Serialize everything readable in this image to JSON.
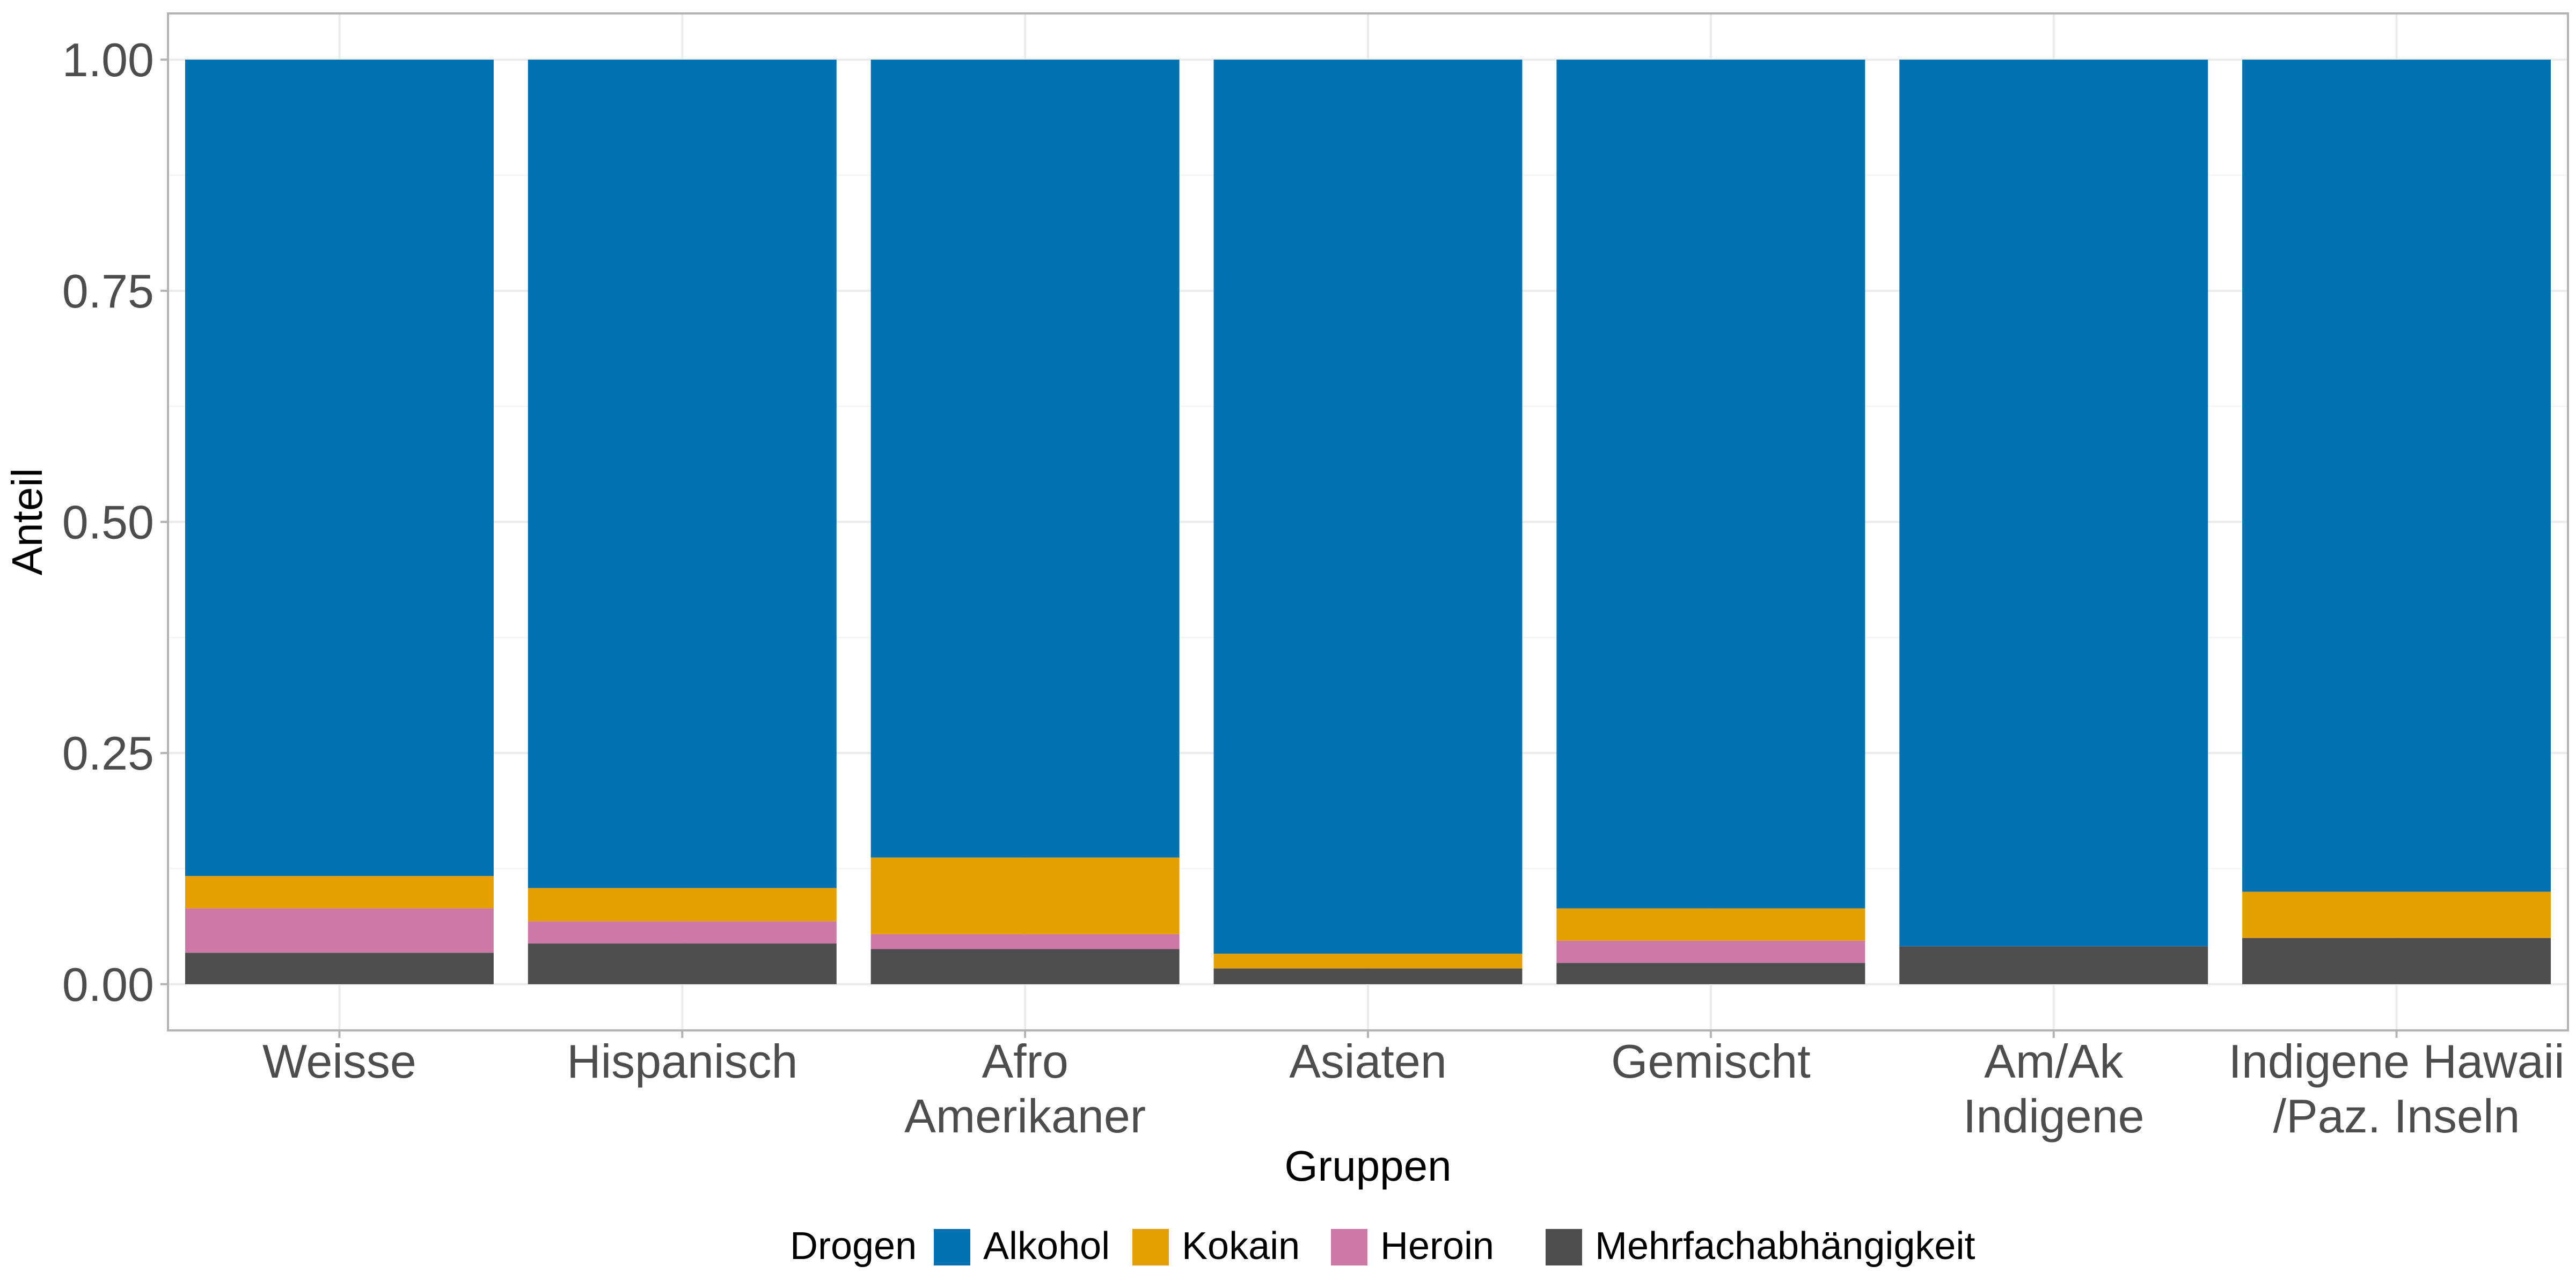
{
  "chart_data": {
    "type": "bar",
    "stacked": true,
    "categories": [
      [
        "Weisse"
      ],
      [
        "Hispanisch"
      ],
      [
        "Afro",
        "Amerikaner"
      ],
      [
        "Asiaten"
      ],
      [
        "Gemischt"
      ],
      [
        "Am/Ak",
        "Indigene"
      ],
      [
        "Indigene Hawaii",
        "/Paz. Inseln"
      ]
    ],
    "series": [
      {
        "name": "Mehrfachabhängigkeit",
        "color": "#4d4d4d",
        "values": [
          0.034,
          0.044,
          0.038,
          0.017,
          0.023,
          0.041,
          0.05
        ]
      },
      {
        "name": "Heroin",
        "color": "#cc79a7",
        "values": [
          0.048,
          0.024,
          0.016,
          0.0,
          0.024,
          0.0,
          0.0
        ]
      },
      {
        "name": "Kokain",
        "color": "#e69f00",
        "values": [
          0.035,
          0.036,
          0.083,
          0.016,
          0.035,
          0.0,
          0.05
        ]
      },
      {
        "name": "Alkohol",
        "color": "#0072b2",
        "values": [
          0.883,
          0.896,
          0.863,
          0.967,
          0.918,
          0.959,
          0.9
        ]
      }
    ],
    "xlabel": "Gruppen",
    "ylabel": "Anteil",
    "ylim": [
      -0.05,
      1.05
    ],
    "yticks": [
      0.0,
      0.25,
      0.5,
      0.75,
      1.0
    ],
    "ytick_labels": [
      "0.00",
      "0.25",
      "0.50",
      "0.75",
      "1.00"
    ],
    "grid": true,
    "legend": {
      "title": "Drogen",
      "placement": "bottom",
      "entries": [
        "Alkohol",
        "Kokain",
        "Heroin",
        "Mehrfachabhängigkeit"
      ]
    }
  }
}
